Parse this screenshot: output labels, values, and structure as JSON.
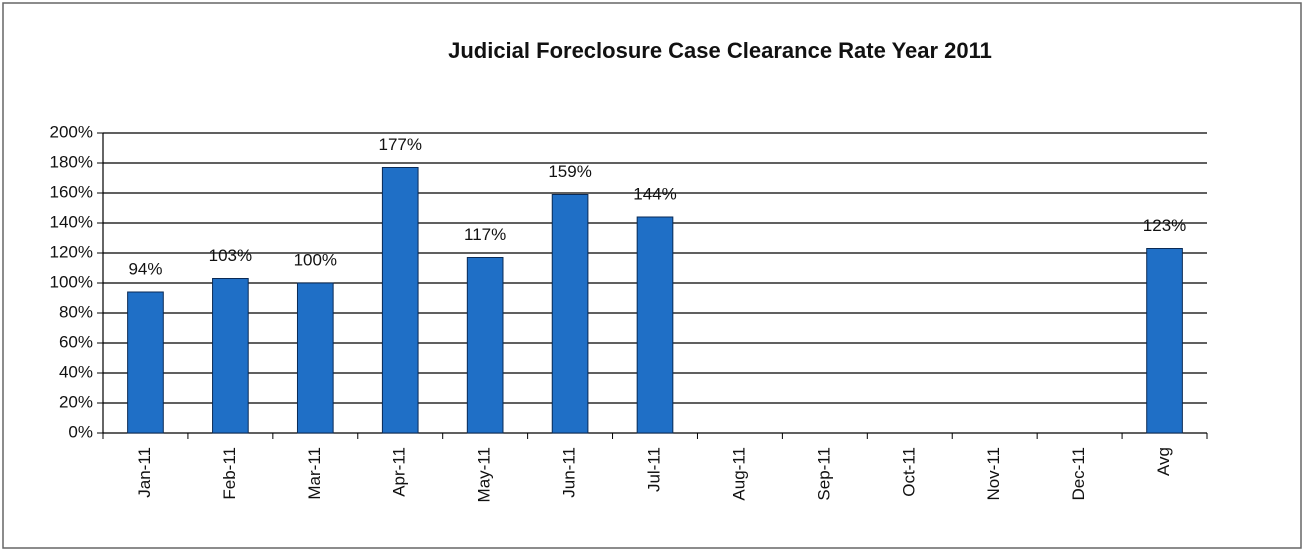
{
  "chart_data": {
    "type": "bar",
    "title": "Judicial  Foreclosure Case Clearance Rate Year 2011",
    "categories": [
      "Jan-11",
      "Feb-11",
      "Mar-11",
      "Apr-11",
      "May-11",
      "Jun-11",
      "Jul-11",
      "Aug-11",
      "Sep-11",
      "Oct-11",
      "Nov-11",
      "Dec-11",
      "Avg"
    ],
    "values": [
      94,
      103,
      100,
      177,
      117,
      159,
      144,
      null,
      null,
      null,
      null,
      null,
      123
    ],
    "value_labels": [
      "94%",
      "103%",
      "100%",
      "177%",
      "117%",
      "159%",
      "144%",
      null,
      null,
      null,
      null,
      null,
      "123%"
    ],
    "color": "#1f6fc6",
    "ylim": [
      0,
      200
    ],
    "yticks": [
      {
        "value": 0,
        "label": "0%"
      },
      {
        "value": 20,
        "label": "20%"
      },
      {
        "value": 40,
        "label": "40%"
      },
      {
        "value": 60,
        "label": "60%"
      },
      {
        "value": 80,
        "label": "80%"
      },
      {
        "value": 100,
        "label": "100%"
      },
      {
        "value": 120,
        "label": "120%"
      },
      {
        "value": 140,
        "label": "140%"
      },
      {
        "value": 160,
        "label": "160%"
      },
      {
        "value": 180,
        "label": "180%"
      },
      {
        "value": 200,
        "label": "200%"
      }
    ],
    "grid": true
  }
}
